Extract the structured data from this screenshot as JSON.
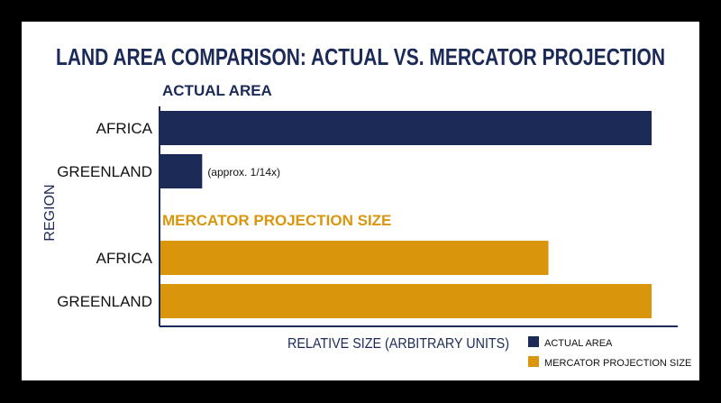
{
  "chart_data": {
    "type": "bar",
    "orientation": "horizontal",
    "title": "LAND AREA COMPARISON: ACTUAL VS. MERCATOR PROJECTION",
    "xlabel": "RELATIVE SIZE (ARBITRARY UNITS)",
    "ylabel": "REGION",
    "xlim": [
      0,
      100
    ],
    "grid": false,
    "legend_position": "bottom-right",
    "groups": [
      {
        "label": "ACTUAL AREA",
        "color": "#1b2a57",
        "categories": [
          "AFRICA",
          "GREENLAND"
        ],
        "values": [
          100,
          8.5
        ],
        "annotations": [
          "",
          "(approx. 1/14x)"
        ]
      },
      {
        "label": "MERCATOR PROJECTION SIZE",
        "color": "#d9960d",
        "categories": [
          "AFRICA",
          "GREENLAND"
        ],
        "values": [
          79,
          100
        ],
        "annotations": [
          "",
          ""
        ]
      }
    ],
    "legend": [
      {
        "label": "ACTUAL AREA",
        "color": "#1b2a57"
      },
      {
        "label": "MERCATOR PROJECTION SIZE",
        "color": "#d9960d"
      }
    ]
  }
}
